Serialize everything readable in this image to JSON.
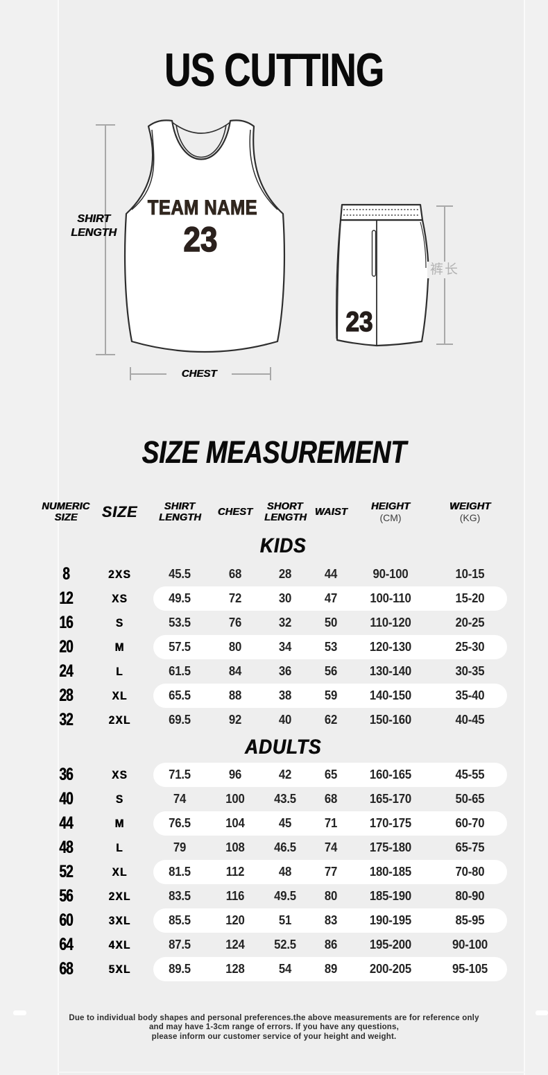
{
  "title": "US CUTTING",
  "diagram": {
    "shirt_length_label_line1": "SHIRT",
    "shirt_length_label_line2": "LENGTH",
    "chest_label": "CHEST",
    "pants_length_label": "裤长",
    "jersey": {
      "team_name": "TEAM NAME",
      "number": "23"
    },
    "shorts": {
      "number": "23"
    }
  },
  "table": {
    "title": "SIZE MEASUREMENT",
    "columns": [
      {
        "lines": [
          "NUMERIC",
          "SIZE"
        ]
      },
      {
        "lines": [
          "SIZE"
        ],
        "big": true
      },
      {
        "lines": [
          "SHIRT",
          "LENGTH"
        ]
      },
      {
        "lines": [
          "CHEST"
        ]
      },
      {
        "lines": [
          "SHORT",
          "LENGTH"
        ]
      },
      {
        "lines": [
          "WAIST"
        ]
      },
      {
        "lines": [
          "HEIGHT"
        ],
        "sub": "(CM)"
      },
      {
        "lines": [
          "WEIGHT"
        ],
        "sub": "(KG)"
      }
    ],
    "sections": [
      {
        "label": "KIDS",
        "rows": [
          {
            "cells": [
              "8",
              "2XS",
              "45.5",
              "68",
              "28",
              "44",
              "90-100",
              "10-15"
            ],
            "highlight": false
          },
          {
            "cells": [
              "12",
              "XS",
              "49.5",
              "72",
              "30",
              "47",
              "100-110",
              "15-20"
            ],
            "highlight": true
          },
          {
            "cells": [
              "16",
              "S",
              "53.5",
              "76",
              "32",
              "50",
              "110-120",
              "20-25"
            ],
            "highlight": false
          },
          {
            "cells": [
              "20",
              "M",
              "57.5",
              "80",
              "34",
              "53",
              "120-130",
              "25-30"
            ],
            "highlight": true
          },
          {
            "cells": [
              "24",
              "L",
              "61.5",
              "84",
              "36",
              "56",
              "130-140",
              "30-35"
            ],
            "highlight": false
          },
          {
            "cells": [
              "28",
              "XL",
              "65.5",
              "88",
              "38",
              "59",
              "140-150",
              "35-40"
            ],
            "highlight": true
          },
          {
            "cells": [
              "32",
              "2XL",
              "69.5",
              "92",
              "40",
              "62",
              "150-160",
              "40-45"
            ],
            "highlight": false
          }
        ]
      },
      {
        "label": "ADULTS",
        "rows": [
          {
            "cells": [
              "36",
              "XS",
              "71.5",
              "96",
              "42",
              "65",
              "160-165",
              "45-55"
            ],
            "highlight": true
          },
          {
            "cells": [
              "40",
              "S",
              "74",
              "100",
              "43.5",
              "68",
              "165-170",
              "50-65"
            ],
            "highlight": false
          },
          {
            "cells": [
              "44",
              "M",
              "76.5",
              "104",
              "45",
              "71",
              "170-175",
              "60-70"
            ],
            "highlight": true
          },
          {
            "cells": [
              "48",
              "L",
              "79",
              "108",
              "46.5",
              "74",
              "175-180",
              "65-75"
            ],
            "highlight": false
          },
          {
            "cells": [
              "52",
              "XL",
              "81.5",
              "112",
              "48",
              "77",
              "180-185",
              "70-80"
            ],
            "highlight": true
          },
          {
            "cells": [
              "56",
              "2XL",
              "83.5",
              "116",
              "49.5",
              "80",
              "185-190",
              "80-90"
            ],
            "highlight": false
          },
          {
            "cells": [
              "60",
              "3XL",
              "85.5",
              "120",
              "51",
              "83",
              "190-195",
              "85-95"
            ],
            "highlight": true
          },
          {
            "cells": [
              "64",
              "4XL",
              "87.5",
              "124",
              "52.5",
              "86",
              "195-200",
              "90-100"
            ],
            "highlight": false
          },
          {
            "cells": [
              "68",
              "5XL",
              "89.5",
              "128",
              "54",
              "89",
              "200-205",
              "95-105"
            ],
            "highlight": true
          }
        ]
      }
    ]
  },
  "footer": {
    "lines": [
      "Due to individual body shapes and personal preferences.the above measurements are for reference only",
      "and may have 1-3cm range of errors. If you have any questions,",
      "please inform our customer service of your height and weight."
    ]
  },
  "colors": {
    "background": "#eeeeee",
    "highlight_row": "#ffffff",
    "heading": "#0d0d0d",
    "dimension_line": "#a8a8a8",
    "pants_label_gray": "#b2b2b2",
    "jersey_text": "#31271f"
  }
}
